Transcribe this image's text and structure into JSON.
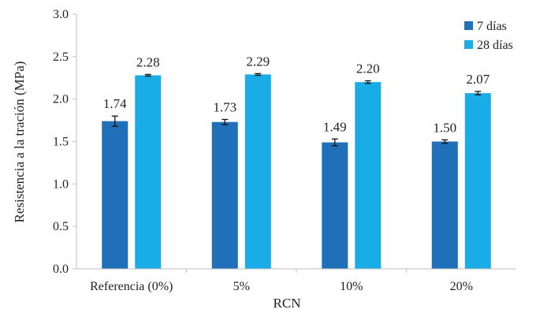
{
  "chart_data": {
    "type": "bar",
    "title": "",
    "xlabel": "RCN",
    "ylabel": "Resistencia a la tración (MPa)",
    "categories": [
      "Referencia (0%)",
      "5%",
      "10%",
      "20%"
    ],
    "ylim": [
      0,
      3.0
    ],
    "yticks": [
      "0.0",
      "0.5",
      "1.0",
      "1.5",
      "2.0",
      "2.5",
      "3.0"
    ],
    "grid": false,
    "legend_position": "top-right",
    "series": [
      {
        "name": "7 días",
        "color": "#1f6fb9",
        "values": [
          1.74,
          1.73,
          1.49,
          1.5
        ],
        "labels": [
          "1.74",
          "1.73",
          "1.49",
          "1.50"
        ],
        "errors": [
          0.06,
          0.03,
          0.04,
          0.02
        ]
      },
      {
        "name": "28 días",
        "color": "#1aace6",
        "values": [
          2.28,
          2.29,
          2.2,
          2.07
        ],
        "labels": [
          "2.28",
          "2.29",
          "2.20",
          "2.07"
        ],
        "errors": [
          0.01,
          0.01,
          0.015,
          0.02
        ]
      }
    ]
  }
}
